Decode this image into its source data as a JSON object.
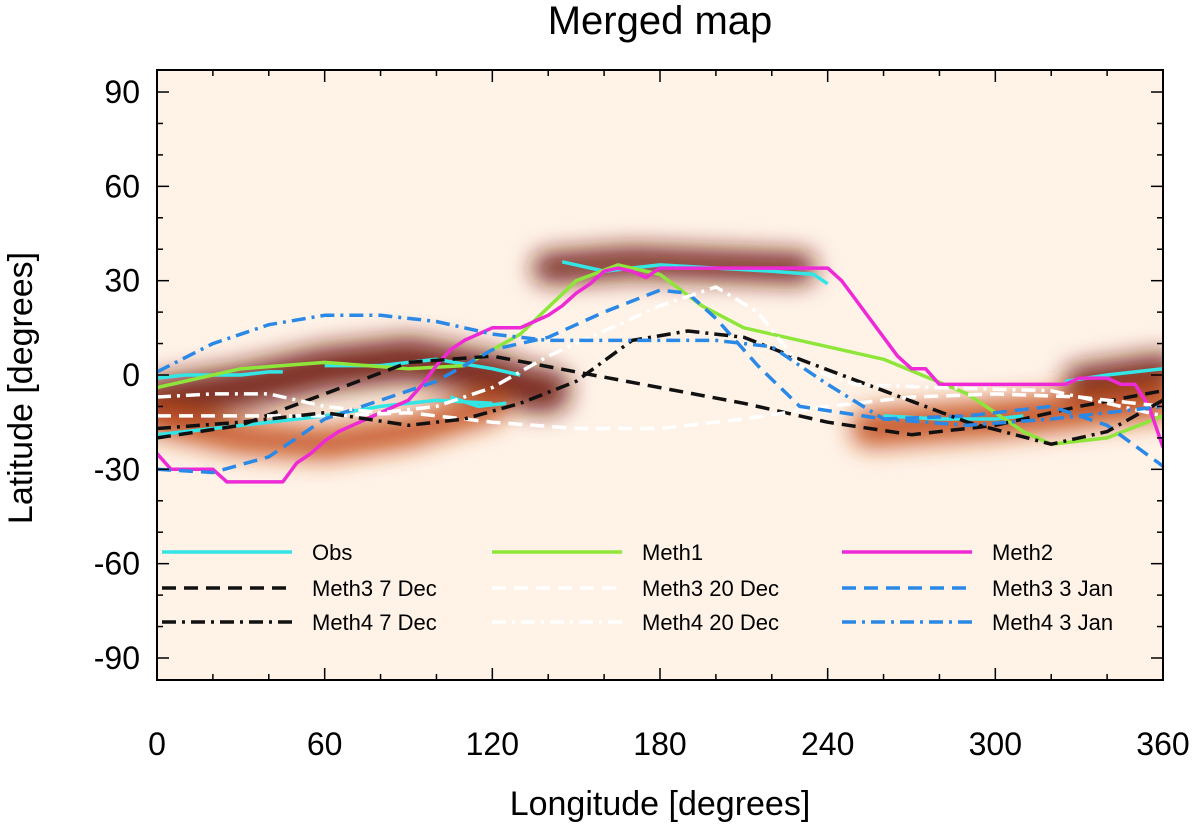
{
  "chart_data": {
    "type": "line",
    "title": "Merged map",
    "xlabel": "Longitude [degrees]",
    "ylabel": "Latitude [degrees]",
    "xlim": [
      0,
      360
    ],
    "ylim": [
      -97,
      97
    ],
    "xticks": [
      0,
      60,
      120,
      180,
      240,
      300,
      360
    ],
    "yticks": [
      90,
      60,
      30,
      0,
      -30,
      -60,
      -90
    ],
    "background": "heatmap",
    "heatmap_colors": [
      "#fff6ee",
      "#fbdcc0",
      "#f5b07a",
      "#e8793e",
      "#c24a1a",
      "#6e1a08"
    ],
    "legend": {
      "rows": [
        [
          "Obs",
          "Meth1",
          "Meth2"
        ],
        [
          "Meth3 7 Dec",
          "Meth3 20 Dec",
          "Meth3 3 Jan"
        ],
        [
          "Meth4 7 Dec",
          "Meth4 20 Dec",
          "Meth4 3 Jan"
        ]
      ]
    },
    "series": [
      {
        "name": "Obs",
        "color": "#33e6e6",
        "style": "solid",
        "segments": [
          {
            "x": [
              0,
              10,
              20,
              30,
              40,
              45
            ],
            "y": [
              -1,
              0,
              0,
              0,
              1,
              1
            ]
          },
          {
            "x": [
              60,
              80,
              100,
              120,
              130
            ],
            "y": [
              3,
              3,
              5,
              2,
              0
            ]
          },
          {
            "x": [
              0,
              20,
              40,
              60,
              80,
              100,
              120
            ],
            "y": [
              -19,
              -17,
              -15,
              -13,
              -10,
              -8,
              -9
            ]
          },
          {
            "x": [
              105,
              115,
              125
            ],
            "y": [
              -7,
              -10,
              -9
            ]
          },
          {
            "x": [
              145,
              160,
              180,
              200,
              220,
              235,
              240
            ],
            "y": [
              36,
              33,
              35,
              34,
              33,
              32,
              29
            ]
          },
          {
            "x": [
              260,
              280,
              300,
              310
            ],
            "y": [
              -13,
              -14,
              -14,
              -13
            ]
          },
          {
            "x": [
              325,
              340,
              360
            ],
            "y": [
              -2,
              0,
              2
            ]
          }
        ]
      },
      {
        "name": "Meth1",
        "color": "#8ee63a",
        "style": "solid",
        "x": [
          0,
          30,
          60,
          90,
          110,
          130,
          150,
          165,
          180,
          195,
          210,
          230,
          260,
          290,
          310,
          320,
          340,
          360
        ],
        "y": [
          -4,
          2,
          4,
          2,
          3,
          13,
          30,
          35,
          32,
          22,
          15,
          11,
          5,
          -6,
          -18,
          -22,
          -20,
          -13
        ]
      },
      {
        "name": "Meth2",
        "color": "#ee2ad6",
        "style": "solid",
        "x": [
          0,
          5,
          10,
          15,
          20,
          25,
          30,
          35,
          40,
          45,
          50,
          55,
          60,
          65,
          70,
          75,
          80,
          85,
          90,
          95,
          100,
          105,
          110,
          115,
          120,
          125,
          130,
          135,
          140,
          145,
          150,
          155,
          160,
          165,
          170,
          175,
          180,
          185,
          190,
          195,
          200,
          205,
          210,
          215,
          220,
          225,
          230,
          235,
          240,
          245,
          250,
          255,
          260,
          265,
          270,
          275,
          280,
          285,
          290,
          295,
          300,
          305,
          310,
          315,
          320,
          325,
          330,
          335,
          340,
          345,
          350,
          355,
          360
        ],
        "y": [
          -25,
          -30,
          -30,
          -30,
          -30,
          -34,
          -34,
          -34,
          -34,
          -34,
          -28,
          -25,
          -21,
          -18,
          -16,
          -14,
          -12,
          -10,
          -8,
          -3,
          3,
          8,
          11,
          13,
          15,
          15,
          15,
          17,
          19,
          22,
          26,
          29,
          33,
          34,
          33,
          31,
          34,
          34,
          34,
          34,
          34,
          34,
          34,
          34,
          34,
          34,
          34,
          34,
          34,
          30,
          24,
          18,
          12,
          6,
          2,
          2,
          -3,
          -3,
          -3,
          -3,
          -3,
          -3,
          -3,
          -3,
          -3,
          -3,
          -1,
          -1,
          -1,
          -3,
          -3,
          -10,
          -23
        ]
      },
      {
        "name": "Meth3 7 Dec",
        "color": "#111111",
        "style": "dashed",
        "x": [
          0,
          30,
          60,
          90,
          120,
          150,
          180,
          210,
          240,
          270,
          300,
          330,
          360
        ],
        "y": [
          -20,
          -16,
          -6,
          4,
          6,
          1,
          -4,
          -9,
          -15,
          -19,
          -16,
          -10,
          -5
        ]
      },
      {
        "name": "Meth3 20 Dec",
        "color": "#ffffff",
        "style": "dashed",
        "x": [
          0,
          30,
          60,
          90,
          120,
          150,
          180,
          210,
          240,
          270,
          300,
          330,
          360
        ],
        "y": [
          -13,
          -13,
          -13,
          -12,
          -15,
          -17,
          -17,
          -14,
          -10,
          -7,
          -6,
          -7,
          -10
        ]
      },
      {
        "name": "Meth3 3 Jan",
        "color": "#2a88e6",
        "style": "dashed",
        "x": [
          0,
          20,
          40,
          60,
          80,
          100,
          120,
          140,
          160,
          180,
          190,
          200,
          215,
          230,
          260,
          290,
          320,
          340,
          360
        ],
        "y": [
          -30,
          -31,
          -26,
          -14,
          -8,
          -2,
          8,
          12,
          20,
          27,
          26,
          18,
          3,
          -10,
          -14,
          -13,
          -10,
          -16,
          -29
        ]
      },
      {
        "name": "Meth4 7 Dec",
        "color": "#111111",
        "style": "dashdot",
        "x": [
          0,
          30,
          60,
          90,
          110,
          130,
          150,
          170,
          190,
          210,
          230,
          260,
          290,
          320,
          340,
          360
        ],
        "y": [
          -17,
          -15,
          -12,
          -16,
          -14,
          -9,
          -2,
          11,
          14,
          12,
          5,
          -5,
          -15,
          -22,
          -18,
          -8
        ]
      },
      {
        "name": "Meth4 20 Dec",
        "color": "#ffffff",
        "style": "dashdot",
        "x": [
          0,
          20,
          40,
          60,
          80,
          100,
          120,
          140,
          160,
          180,
          200,
          215,
          230,
          250,
          280,
          320,
          360
        ],
        "y": [
          -7,
          -6,
          -6,
          -10,
          -12,
          -10,
          -4,
          6,
          14,
          22,
          28,
          20,
          3,
          -3,
          -4,
          -5,
          -13
        ]
      },
      {
        "name": "Meth4 3 Jan",
        "color": "#2a88e6",
        "style": "dashdot",
        "x": [
          0,
          20,
          40,
          60,
          80,
          100,
          120,
          140,
          160,
          180,
          200,
          220,
          240,
          260,
          290,
          320,
          360
        ],
        "y": [
          1,
          10,
          16,
          19,
          19,
          17,
          13,
          11,
          11,
          11,
          11,
          9,
          -3,
          -14,
          -16,
          -14,
          -10
        ]
      }
    ],
    "heatmap_bands": [
      {
        "x": [
          0,
          30,
          60,
          90,
          120,
          135,
          140
        ],
        "y": [
          -8,
          -4,
          2,
          5,
          0,
          -5,
          -5
        ],
        "width": 14,
        "level": 5
      },
      {
        "x": [
          0,
          30,
          60,
          90,
          120
        ],
        "y": [
          -14,
          -20,
          -22,
          -18,
          -10
        ],
        "width": 10,
        "level": 4
      },
      {
        "x": [
          140,
          170,
          200,
          230
        ],
        "y": [
          34,
          36,
          35,
          34
        ],
        "width": 10,
        "level": 5
      },
      {
        "x": [
          255,
          300,
          360
        ],
        "y": [
          -17,
          -14,
          -8
        ],
        "width": 12,
        "level": 4
      },
      {
        "x": [
          330,
          360
        ],
        "y": [
          -2,
          2
        ],
        "width": 10,
        "level": 5
      }
    ]
  }
}
